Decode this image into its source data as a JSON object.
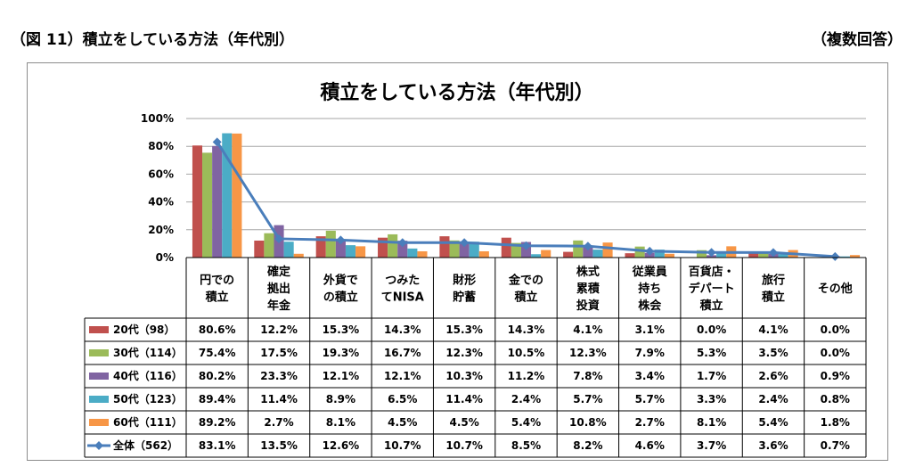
{
  "figure": {
    "title": "（図 11）積立をしている方法（年代別）",
    "note": "（複数回答）"
  },
  "chart_data": {
    "type": "bar",
    "title": "積立をしている方法（年代別）",
    "xlabel": "",
    "ylabel": "",
    "ylim": [
      0,
      100
    ],
    "yticks": [
      "0%",
      "20%",
      "40%",
      "60%",
      "80%",
      "100%"
    ],
    "grid": true,
    "legend": "table-left",
    "categories": [
      [
        "円での",
        "積立"
      ],
      [
        "確定",
        "拠出",
        "年金"
      ],
      [
        "外貨で",
        "の積立"
      ],
      [
        "つみた",
        "てNISA"
      ],
      [
        "財形",
        "貯蓄"
      ],
      [
        "金での",
        "積立"
      ],
      [
        "株式",
        "累積",
        "投資"
      ],
      [
        "従業員",
        "持ち",
        "株会"
      ],
      [
        "百貨店・",
        "デパート",
        "積立"
      ],
      [
        "旅行",
        "積立"
      ],
      [
        "その他"
      ]
    ],
    "series": [
      {
        "name": "20代（98）",
        "kind": "bar",
        "color": "#c0504d",
        "values": [
          80.6,
          12.2,
          15.3,
          14.3,
          15.3,
          14.3,
          4.1,
          3.1,
          0.0,
          4.1,
          0.0
        ],
        "labels": [
          "80.6%",
          "12.2%",
          "15.3%",
          "14.3%",
          "15.3%",
          "14.3%",
          "4.1%",
          "3.1%",
          "0.0%",
          "4.1%",
          "0.0%"
        ]
      },
      {
        "name": "30代（114）",
        "kind": "bar",
        "color": "#9bbb59",
        "values": [
          75.4,
          17.5,
          19.3,
          16.7,
          12.3,
          10.5,
          12.3,
          7.9,
          5.3,
          3.5,
          0.0
        ],
        "labels": [
          "75.4%",
          "17.5%",
          "19.3%",
          "16.7%",
          "12.3%",
          "10.5%",
          "12.3%",
          "7.9%",
          "5.3%",
          "3.5%",
          "0.0%"
        ]
      },
      {
        "name": "40代（116）",
        "kind": "bar",
        "color": "#8064a2",
        "values": [
          80.2,
          23.3,
          12.1,
          12.1,
          10.3,
          11.2,
          7.8,
          3.4,
          1.7,
          2.6,
          0.9
        ],
        "labels": [
          "80.2%",
          "23.3%",
          "12.1%",
          "12.1%",
          "10.3%",
          "11.2%",
          "7.8%",
          "3.4%",
          "1.7%",
          "2.6%",
          "0.9%"
        ]
      },
      {
        "name": "50代（123）",
        "kind": "bar",
        "color": "#4bacc6",
        "values": [
          89.4,
          11.4,
          8.9,
          6.5,
          11.4,
          2.4,
          5.7,
          5.7,
          3.3,
          2.4,
          0.8
        ],
        "labels": [
          "89.4%",
          "11.4%",
          "8.9%",
          "6.5%",
          "11.4%",
          "2.4%",
          "5.7%",
          "5.7%",
          "3.3%",
          "2.4%",
          "0.8%"
        ]
      },
      {
        "name": "60代（111）",
        "kind": "bar",
        "color": "#f79646",
        "values": [
          89.2,
          2.7,
          8.1,
          4.5,
          4.5,
          5.4,
          10.8,
          2.7,
          8.1,
          5.4,
          1.8
        ],
        "labels": [
          "89.2%",
          "2.7%",
          "8.1%",
          "4.5%",
          "4.5%",
          "5.4%",
          "10.8%",
          "2.7%",
          "8.1%",
          "5.4%",
          "1.8%"
        ]
      },
      {
        "name": "全体（562）",
        "kind": "line",
        "color": "#4a7ebb",
        "values": [
          83.1,
          13.5,
          12.6,
          10.7,
          10.7,
          8.5,
          8.2,
          4.6,
          3.7,
          3.6,
          0.7
        ],
        "labels": [
          "83.1%",
          "13.5%",
          "12.6%",
          "10.7%",
          "10.7%",
          "8.5%",
          "8.2%",
          "4.6%",
          "3.7%",
          "3.6%",
          "0.7%"
        ]
      }
    ]
  }
}
